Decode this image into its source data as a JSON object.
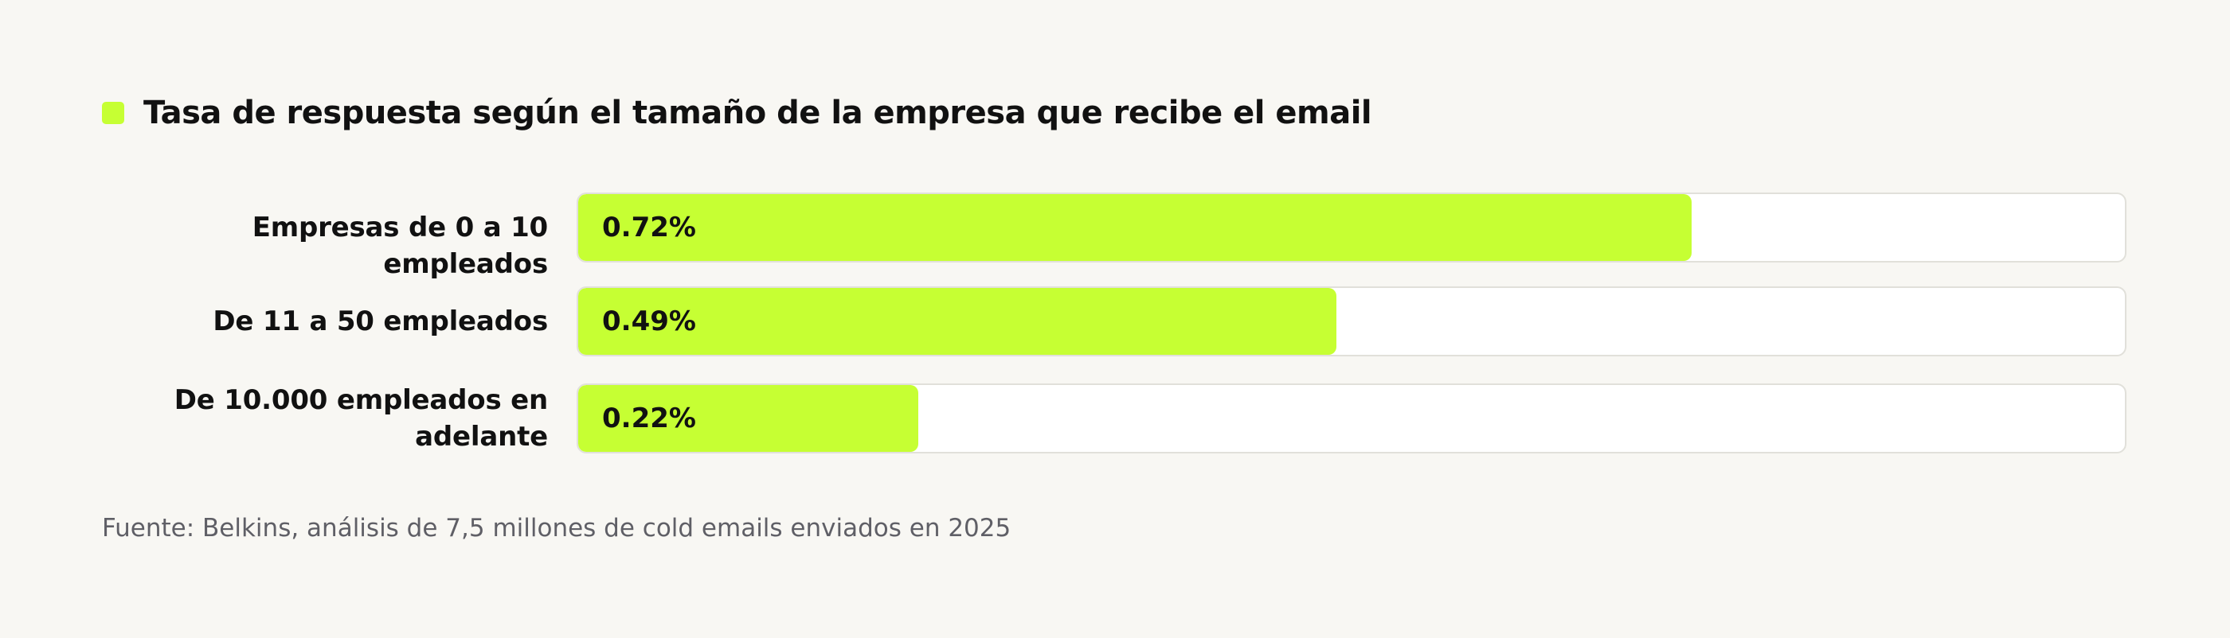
{
  "colors": {
    "accent": "#c6ff33",
    "background": "#f8f7f3",
    "track": "#ffffff",
    "track_border": "#e1e0da",
    "text": "#111111",
    "muted_text": "#5f5f66"
  },
  "header": {
    "marker_icon": "square-marker-icon",
    "title": "Tasa de respuesta según el tamaño de la empresa que recibe el email"
  },
  "chart_data": {
    "type": "bar",
    "orientation": "horizontal",
    "title": "Tasa de respuesta según el tamaño de la empresa que recibe el email",
    "categories": [
      "Empresas de 0 a 10 empleados",
      "De 11 a 50 empleados",
      "De 10.000 empleados en adelante"
    ],
    "values": [
      0.72,
      0.49,
      0.22
    ],
    "value_labels": [
      "0.72%",
      "0.49%",
      "0.22%"
    ],
    "unit": "%",
    "xlim": [
      0,
      1.0
    ],
    "grid": false,
    "legend": "none"
  },
  "footer": {
    "source": "Fuente: Belkins, análisis de 7,5 millones de cold emails enviados en 2025"
  }
}
